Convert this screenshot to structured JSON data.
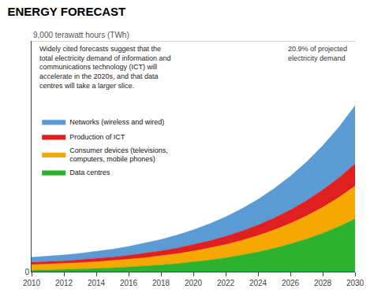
{
  "chart_data": {
    "type": "area",
    "stacked": true,
    "title": "ENERGY FORECAST",
    "subtitle": "Widely cited forecasts suggest that the\ntotal electricity demand of information and\ncommunications technology (ICT) will\naccelerate in the 2020s, and that data\ncentres will take a larger slice.",
    "ylabel": "9,000 terawatt hours (TWh)",
    "annotations": [
      "20.9% of projected\nelectricity demand"
    ],
    "x": [
      2010,
      2011,
      2012,
      2013,
      2014,
      2015,
      2016,
      2017,
      2018,
      2019,
      2020,
      2021,
      2022,
      2023,
      2024,
      2025,
      2026,
      2027,
      2028,
      2029,
      2030
    ],
    "series": [
      {
        "name": "Data centres",
        "color": "#2db230",
        "values": [
          50,
          62,
          78,
          98,
          120,
          148,
          180,
          218,
          263,
          315,
          378,
          452,
          540,
          645,
          768,
          912,
          1080,
          1275,
          1500,
          1760,
          2060
        ]
      },
      {
        "name": "Consumer devices (televisions,\ncomputers, mobile phones)",
        "color": "#f5a800",
        "values": [
          220,
          228,
          238,
          250,
          264,
          280,
          300,
          323,
          350,
          382,
          420,
          465,
          515,
          572,
          638,
          714,
          800,
          898,
          1010,
          1136,
          1280
        ]
      },
      {
        "name": "Production of ICT",
        "color": "#e02020",
        "values": [
          95,
          100,
          108,
          118,
          130,
          144,
          160,
          178,
          200,
          225,
          254,
          287,
          325,
          368,
          416,
          471,
          533,
          603,
          682,
          770,
          870
        ]
      },
      {
        "name": "Networks (wireless and wired)",
        "color": "#5b9bd5",
        "values": [
          195,
          208,
          225,
          246,
          272,
          304,
          342,
          388,
          442,
          505,
          578,
          662,
          758,
          870,
          998,
          1145,
          1312,
          1502,
          1720,
          1970,
          2260
        ]
      }
    ],
    "xlim": [
      2010,
      2030
    ],
    "xticks": [
      2010,
      2012,
      2014,
      2016,
      2018,
      2020,
      2022,
      2024,
      2026,
      2028,
      2030
    ],
    "ylim": [
      0,
      9000
    ],
    "yticks": [
      0
    ],
    "grid": false,
    "legend": "upper left"
  }
}
